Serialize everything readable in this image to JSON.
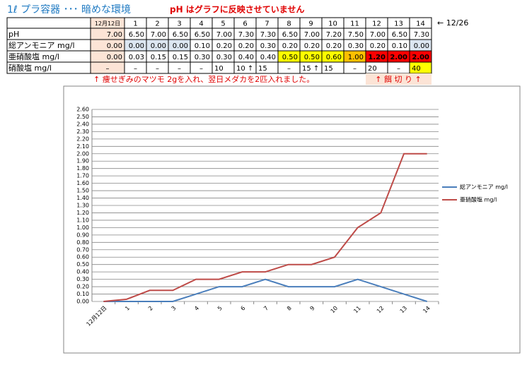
{
  "header": {
    "title": "1ℓ プラ容器 ･･･ 暗めな環境",
    "note": "pH はグラフに反映させていません"
  },
  "table": {
    "columns": [
      "12月12日",
      "1",
      "2",
      "3",
      "4",
      "5",
      "6",
      "7",
      "8",
      "9",
      "10",
      "11",
      "12",
      "13",
      "14"
    ],
    "end_note": "← 12/26",
    "rows": [
      {
        "label": "pH",
        "cells": [
          "7.00",
          "6.50",
          "7.00",
          "6.50",
          "6.50",
          "7.00",
          "7.30",
          "7.30",
          "6.50",
          "7.00",
          "7.20",
          "7.50",
          "7.00",
          "6.50",
          "7.30"
        ]
      },
      {
        "label": "総アンモニア mg/l",
        "cells": [
          "0.00",
          "0.00",
          "0.00",
          "0.00",
          "0.10",
          "0.20",
          "0.20",
          "0.30",
          "0.20",
          "0.20",
          "0.20",
          "0.30",
          "0.20",
          "0.10",
          "0.00"
        ]
      },
      {
        "label": "亜硝酸塩 mg/l",
        "cells": [
          "0.00",
          "0.03",
          "0.15",
          "0.15",
          "0.30",
          "0.30",
          "0.40",
          "0.40",
          "0.50",
          "0.50",
          "0.60",
          "1.00",
          "1.20",
          "2.00",
          "2.00"
        ]
      },
      {
        "label": "硝酸塩 mg/l",
        "cells": [
          "–",
          "–",
          "–",
          "–",
          "–",
          "10",
          "10 ↑",
          "15",
          "–",
          "15 ↑",
          "15",
          "–",
          "20",
          "–",
          "40"
        ]
      }
    ],
    "notes": [
      "↑ 痩せぎみのマツモ 2gを入れ、翌日メダカを2匹入れました。",
      "↑ 餌 切 り ↑"
    ]
  },
  "chart_data": {
    "type": "line",
    "categories": [
      "12月12日",
      "1",
      "2",
      "3",
      "4",
      "5",
      "6",
      "7",
      "8",
      "9",
      "10",
      "11",
      "12",
      "13",
      "14"
    ],
    "series": [
      {
        "name": "総アンモニア mg/l",
        "color": "#4a7ebb",
        "values": [
          0,
          0,
          0,
          0,
          0.1,
          0.2,
          0.2,
          0.3,
          0.2,
          0.2,
          0.2,
          0.3,
          0.2,
          0.1,
          0
        ]
      },
      {
        "name": "亜硝酸塩 mg/l",
        "color": "#be4b48",
        "values": [
          0,
          0.03,
          0.15,
          0.15,
          0.3,
          0.3,
          0.4,
          0.4,
          0.5,
          0.5,
          0.6,
          1.0,
          1.2,
          2.0,
          2.0
        ]
      }
    ],
    "ylim": [
      0,
      2.6
    ],
    "yticks": [
      {
        "value": 0,
        "label": "0.00"
      },
      {
        "value": 0.1,
        "label": "0.10"
      },
      {
        "value": 0.2,
        "label": "0.20"
      },
      {
        "value": 0.3,
        "label": "0.30"
      },
      {
        "value": 0.4,
        "label": "0.40"
      },
      {
        "value": 0.5,
        "label": "0.50"
      },
      {
        "value": 0.6,
        "label": "0.60"
      },
      {
        "value": 0.7,
        "label": "0.70"
      },
      {
        "value": 0.8,
        "label": "0.80"
      },
      {
        "value": 0.9,
        "label": "0.90"
      },
      {
        "value": 1.0,
        "label": "1.00"
      },
      {
        "value": 1.1,
        "label": "1.10"
      },
      {
        "value": 1.2,
        "label": "1.20"
      },
      {
        "value": 1.3,
        "label": "1.30"
      },
      {
        "value": 1.4,
        "label": "1.40"
      },
      {
        "value": 1.5,
        "label": "1.50"
      },
      {
        "value": 1.6,
        "label": "1.60"
      },
      {
        "value": 1.7,
        "label": "1.70"
      },
      {
        "value": 1.8,
        "label": "1.80"
      },
      {
        "value": 1.9,
        "label": "1.90"
      },
      {
        "value": 2.0,
        "label": "2.00"
      },
      {
        "value": 2.1,
        "label": "2.10"
      },
      {
        "value": 2.2,
        "label": "2.20"
      },
      {
        "value": 2.3,
        "label": "2.30"
      },
      {
        "value": 2.4,
        "label": "2.40"
      },
      {
        "value": 2.5,
        "label": "2.50"
      },
      {
        "value": 2.6,
        "label": "2.60"
      }
    ],
    "grid": true,
    "legend": "right"
  }
}
